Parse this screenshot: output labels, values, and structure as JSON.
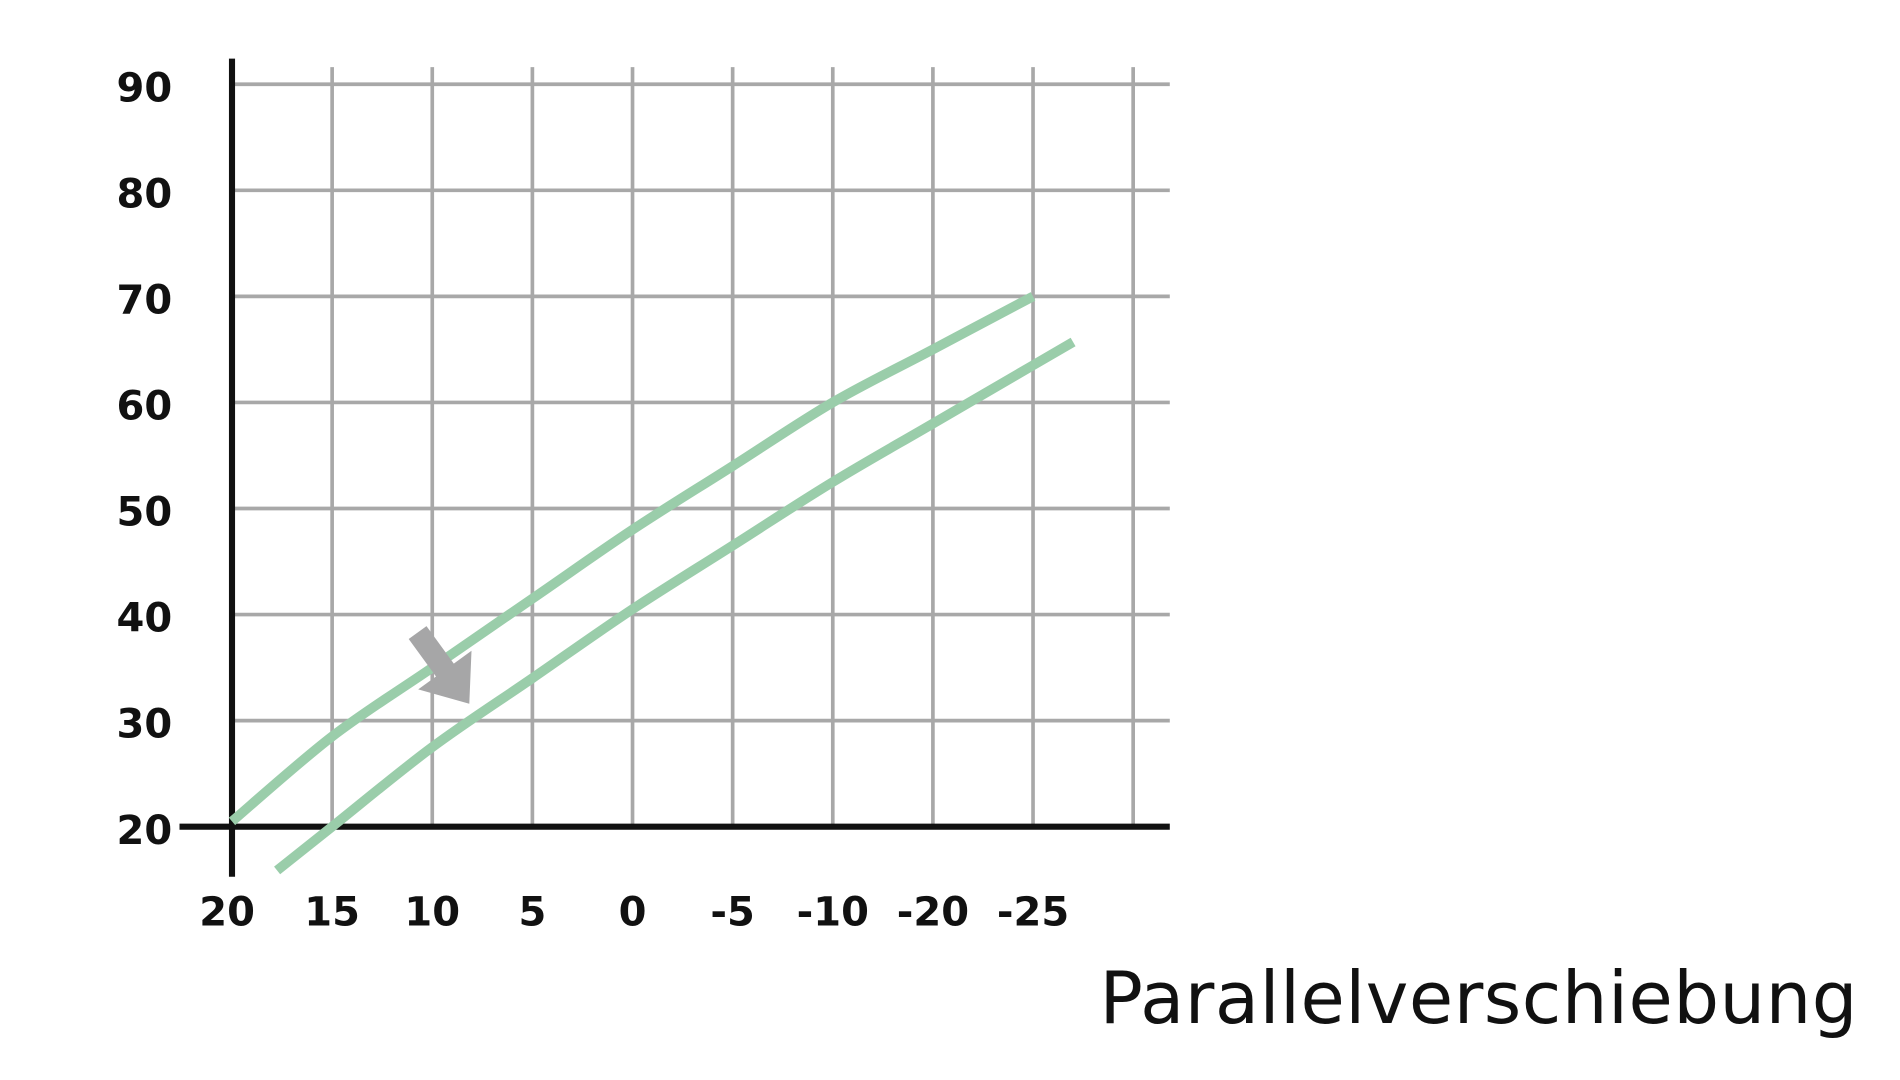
{
  "caption": "Parallelverschiebung",
  "colors": {
    "background": "#ffffff",
    "grid": "#a8a8a8",
    "axis": "#111111",
    "curve": "#9acdaa",
    "arrow": "#a6a6a7"
  },
  "chart_data": {
    "type": "line",
    "title": "",
    "xlabel": "",
    "ylabel": "",
    "grid": true,
    "x_tick_labels": [
      "20",
      "15",
      "10",
      "5",
      "0",
      "-5",
      "-10",
      "-20",
      "-25"
    ],
    "y_tick_labels": [
      "20",
      "30",
      "40",
      "50",
      "60",
      "70",
      "80",
      "90"
    ],
    "ylim": [
      20,
      90
    ],
    "series": [
      {
        "x": [
          "20",
          "15",
          "10",
          "5",
          "0",
          "-5",
          "-10",
          "-20",
          "-25"
        ],
        "y": [
          20.5,
          28.5,
          35,
          41.5,
          48,
          54,
          60,
          65,
          70
        ]
      },
      {
        "x": [
          "15",
          "10",
          "5",
          "0",
          "-5",
          "-10",
          "-20",
          "-25"
        ],
        "y": [
          20,
          27.5,
          34,
          40.5,
          46.5,
          52.5,
          58,
          63.5
        ]
      }
    ],
    "annotations": [
      {
        "type": "arrow",
        "meaning": "shift of the curve downward/right",
        "icon": "down-right-arrow-icon"
      }
    ]
  }
}
